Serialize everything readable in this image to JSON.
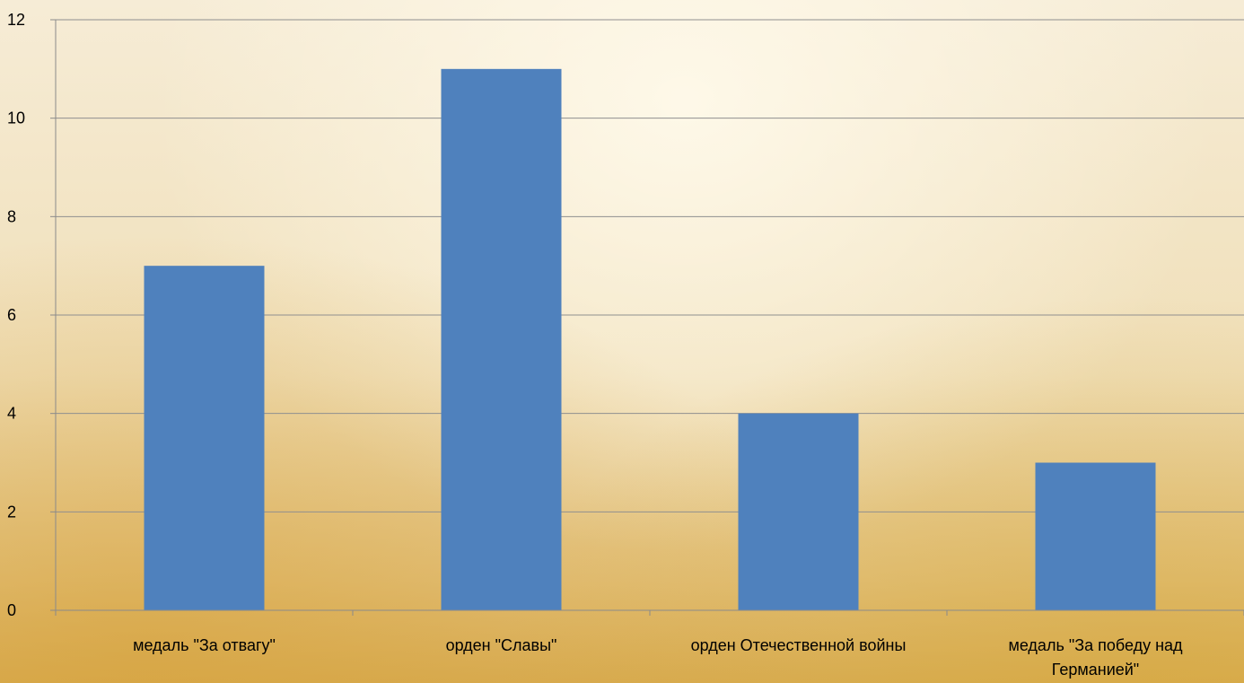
{
  "chart_data": {
    "type": "bar",
    "categories": [
      "медаль \"За отвагу\"",
      "орден \"Славы\"",
      "орден Отечественной войны",
      "медаль \"За победу над Германией\""
    ],
    "category_label_lines": [
      [
        "медаль \"За отвагу\""
      ],
      [
        "орден \"Славы\""
      ],
      [
        "орден Отечественной войны"
      ],
      [
        "медаль \"За победу над",
        "Германией\""
      ]
    ],
    "values": [
      7,
      11,
      4,
      3
    ],
    "ylim": [
      0,
      12
    ],
    "yticks": [
      "0",
      "2",
      "4",
      "6",
      "8",
      "10",
      "12"
    ],
    "title": "",
    "xlabel": "",
    "ylabel": "",
    "grid": true,
    "legend": "none",
    "colors": {
      "bar": "#4f81bd",
      "grid": "#8f8f8f",
      "text": "#000000"
    }
  }
}
